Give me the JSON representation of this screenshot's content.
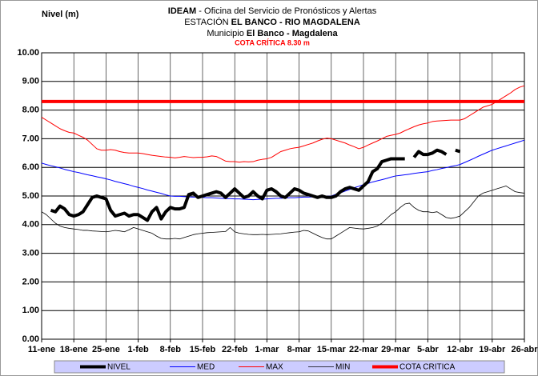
{
  "chart_data": {
    "type": "line",
    "header": [
      {
        "bold": "IDEAM",
        "text": " - Oficina del Servicio de Pronósticos y Alertas"
      },
      {
        "text": "ESTACIÓN ",
        "bold": "EL BANCO - RIO MAGDALENA"
      },
      {
        "text": "Municipio ",
        "bold": "El Banco - Magdalena"
      }
    ],
    "annotation": "COTA CRÍTICA 8.30 m",
    "y_label": "Nivel (m)",
    "categories": [
      "11-ene",
      null,
      null,
      null,
      null,
      null,
      null,
      "18-ene",
      null,
      null,
      null,
      null,
      null,
      null,
      "25-ene",
      null,
      null,
      null,
      null,
      null,
      null,
      "1-feb",
      null,
      null,
      null,
      null,
      null,
      null,
      "8-feb",
      null,
      null,
      null,
      null,
      null,
      null,
      "15-feb",
      null,
      null,
      null,
      null,
      null,
      null,
      "22-feb",
      null,
      null,
      null,
      null,
      null,
      null,
      "1-mar",
      null,
      null,
      null,
      null,
      null,
      null,
      "8-mar",
      null,
      null,
      null,
      null,
      null,
      null,
      "15-mar",
      null,
      null,
      null,
      null,
      null,
      null,
      "22-mar",
      null,
      null,
      null,
      null,
      null,
      null,
      "29-mar",
      null,
      null,
      null,
      null,
      null,
      null,
      "5-abr",
      null,
      null,
      null,
      null,
      null,
      null,
      "12-abr",
      null,
      null,
      null,
      null,
      null,
      null,
      "19-abr",
      null,
      null,
      null,
      null,
      null,
      null,
      "26-abr"
    ],
    "series": [
      {
        "name": "NIVEL",
        "color": "#000000",
        "width": 4,
        "values": [
          4.8,
          null,
          4.5,
          4.45,
          4.65,
          4.55,
          4.35,
          4.3,
          4.35,
          4.45,
          4.7,
          4.95,
          5.0,
          4.95,
          4.9,
          4.5,
          4.3,
          4.35,
          4.4,
          4.3,
          4.35,
          4.35,
          4.25,
          4.15,
          4.45,
          4.6,
          4.2,
          4.45,
          4.6,
          4.55,
          4.55,
          4.6,
          5.05,
          5.1,
          4.95,
          5.0,
          5.05,
          5.1,
          5.15,
          5.1,
          4.95,
          5.1,
          5.25,
          5.1,
          4.95,
          5.0,
          5.15,
          5.0,
          4.9,
          5.2,
          5.25,
          5.15,
          5.0,
          4.95,
          5.1,
          5.25,
          5.2,
          5.1,
          5.05,
          5.0,
          4.95,
          5.0,
          4.95,
          4.95,
          5.0,
          5.15,
          5.25,
          5.3,
          5.25,
          5.2,
          5.35,
          5.5,
          5.85,
          5.95,
          6.2,
          6.25,
          6.3,
          6.3,
          6.3,
          6.3,
          null,
          6.35,
          6.55,
          6.45,
          6.45,
          6.5,
          6.6,
          6.55,
          6.45,
          null,
          6.6,
          6.55,
          null,
          null,
          null,
          null,
          null,
          null,
          null,
          null,
          null,
          null,
          null,
          null,
          null,
          null
        ]
      },
      {
        "name": "MED",
        "color": "#0000ff",
        "width": 1,
        "values": [
          6.15,
          6.1,
          6.06,
          6.02,
          5.98,
          5.93,
          5.89,
          5.85,
          5.82,
          5.78,
          5.74,
          5.71,
          5.67,
          5.64,
          5.6,
          5.56,
          5.51,
          5.47,
          5.43,
          5.39,
          5.34,
          5.3,
          5.26,
          5.21,
          5.17,
          5.13,
          5.09,
          5.04,
          5.0,
          4.99,
          4.99,
          4.98,
          4.97,
          4.96,
          4.96,
          4.95,
          4.94,
          4.94,
          4.93,
          4.92,
          4.91,
          4.91,
          4.9,
          4.9,
          4.89,
          4.88,
          4.87,
          4.88,
          4.89,
          4.9,
          4.91,
          4.92,
          4.92,
          4.93,
          4.94,
          4.94,
          4.95,
          4.96,
          4.96,
          4.97,
          4.98,
          4.99,
          4.99,
          5.0,
          5.06,
          5.11,
          5.17,
          5.23,
          5.29,
          5.34,
          5.4,
          5.44,
          5.49,
          5.53,
          5.57,
          5.61,
          5.66,
          5.7,
          5.72,
          5.74,
          5.76,
          5.79,
          5.81,
          5.83,
          5.85,
          5.89,
          5.92,
          5.96,
          5.99,
          6.03,
          6.06,
          6.1,
          6.17,
          6.24,
          6.31,
          6.39,
          6.46,
          6.53,
          6.6,
          6.65,
          6.7,
          6.75,
          6.8,
          6.85,
          6.9,
          6.95
        ]
      },
      {
        "name": "MAX",
        "color": "#ff0000",
        "width": 1,
        "values": [
          7.75,
          7.65,
          7.55,
          7.45,
          7.35,
          7.28,
          7.22,
          7.2,
          7.12,
          7.05,
          6.95,
          6.8,
          6.65,
          6.6,
          6.6,
          6.62,
          6.6,
          6.55,
          6.52,
          6.5,
          6.5,
          6.5,
          6.48,
          6.45,
          6.42,
          6.4,
          6.38,
          6.36,
          6.35,
          6.33,
          6.35,
          6.38,
          6.36,
          6.34,
          6.35,
          6.35,
          6.37,
          6.4,
          6.38,
          6.3,
          6.22,
          6.2,
          6.2,
          6.18,
          6.2,
          6.19,
          6.2,
          6.25,
          6.28,
          6.3,
          6.35,
          6.45,
          6.55,
          6.6,
          6.65,
          6.68,
          6.7,
          6.75,
          6.8,
          6.85,
          6.92,
          6.98,
          7.02,
          7.0,
          6.95,
          6.9,
          6.85,
          6.78,
          6.72,
          6.65,
          6.7,
          6.78,
          6.85,
          6.92,
          7.0,
          7.08,
          7.12,
          7.15,
          7.2,
          7.28,
          7.35,
          7.42,
          7.48,
          7.52,
          7.55,
          7.6,
          7.62,
          7.63,
          7.64,
          7.65,
          7.65,
          7.65,
          7.7,
          7.8,
          7.9,
          8.0,
          8.1,
          8.15,
          8.2,
          8.3,
          8.4,
          8.5,
          8.6,
          8.72,
          8.8,
          8.85
        ]
      },
      {
        "name": "MIN",
        "color": "#000000",
        "width": 0.8,
        "values": [
          4.45,
          4.35,
          4.2,
          4.05,
          3.95,
          3.9,
          3.87,
          3.85,
          3.83,
          3.8,
          3.8,
          3.78,
          3.77,
          3.76,
          3.75,
          3.77,
          3.8,
          3.78,
          3.75,
          3.82,
          3.9,
          3.85,
          3.8,
          3.75,
          3.7,
          3.6,
          3.52,
          3.5,
          3.5,
          3.52,
          3.5,
          3.55,
          3.6,
          3.65,
          3.68,
          3.7,
          3.72,
          3.73,
          3.74,
          3.75,
          3.76,
          3.9,
          3.75,
          3.7,
          3.68,
          3.66,
          3.65,
          3.65,
          3.66,
          3.65,
          3.66,
          3.67,
          3.68,
          3.7,
          3.72,
          3.74,
          3.75,
          3.8,
          3.78,
          3.7,
          3.62,
          3.55,
          3.5,
          3.5,
          3.6,
          3.7,
          3.8,
          3.9,
          3.88,
          3.86,
          3.85,
          3.87,
          3.9,
          3.95,
          4.05,
          4.2,
          4.35,
          4.45,
          4.6,
          4.72,
          4.75,
          4.6,
          4.5,
          4.45,
          4.45,
          4.42,
          4.45,
          4.35,
          4.25,
          4.22,
          4.25,
          4.3,
          4.45,
          4.6,
          4.8,
          5.0,
          5.1,
          5.15,
          5.2,
          5.25,
          5.3,
          5.35,
          5.25,
          5.15,
          5.12,
          5.1
        ]
      }
    ],
    "threshold": {
      "name": "COTA CRITICA",
      "value": 8.3,
      "color": "#ff0000",
      "width": 4
    },
    "ylim": [
      0,
      10
    ],
    "yticks": [
      {
        "value": 0,
        "label": "0.00"
      },
      {
        "value": 1,
        "label": "1.00"
      },
      {
        "value": 2,
        "label": "2.00"
      },
      {
        "value": 3,
        "label": "3.00"
      },
      {
        "value": 4,
        "label": "4.00"
      },
      {
        "value": 5,
        "label": "5.00"
      },
      {
        "value": 6,
        "label": "6.00"
      },
      {
        "value": 7,
        "label": "7.00"
      },
      {
        "value": 8,
        "label": "8.00"
      },
      {
        "value": 9,
        "label": "9.00"
      },
      {
        "value": 10,
        "label": "10.00"
      }
    ],
    "grid": true,
    "legend_position": "bottom",
    "legend_color": "#ccccff"
  }
}
